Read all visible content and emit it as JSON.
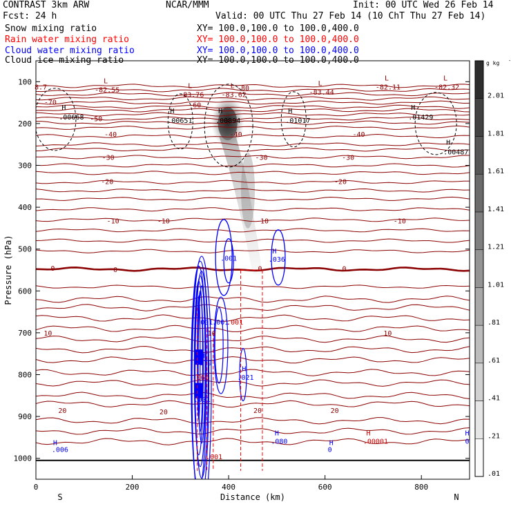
{
  "header": {
    "left1": "CONTRAST  3km ARW",
    "center1": "NCAR/MMM",
    "right1": "Init: 00 UTC Wed 26 Feb 14",
    "left2": "Fcst:   24 h",
    "right2": "Valid: 00 UTC Thu 27 Feb 14 (10 ChT Thu 27 Feb 14)"
  },
  "fields": [
    {
      "name": "Snow mixing ratio",
      "xy": "XY= 100.0,100.0 to 100.0,400.0",
      "color": "#000000"
    },
    {
      "name": "Rain water mixing ratio",
      "xy": "XY= 100.0,100.0 to 100.0,400.0",
      "color": "#ff0000"
    },
    {
      "name": "Cloud water mixing ratio",
      "xy": "XY= 100.0,100.0 to 100.0,400.0",
      "color": "#0000ff"
    },
    {
      "name": "Cloud ice mixing ratio",
      "xy": "XY= 100.0,100.0 to 100.0,400.0",
      "color": "#000000"
    }
  ],
  "chart_data": {
    "type": "contour",
    "xlabel": "Distance (km)",
    "ylabel": "Pressure (hPa)",
    "xlim": [
      0,
      900
    ],
    "ylim": [
      1050,
      50
    ],
    "x_ticks": [
      0,
      200,
      400,
      600,
      800
    ],
    "y_ticks": [
      100,
      200,
      300,
      400,
      500,
      600,
      700,
      800,
      900,
      1000
    ],
    "end_labels": {
      "left": "S",
      "right": "N"
    },
    "colorbar": {
      "unit": "g kg",
      "unit_exp": "-1",
      "labels": [
        ".01",
        ".21",
        ".41",
        ".61",
        ".81",
        "1.01",
        "1.21",
        "1.41",
        "1.61",
        "1.81",
        "2.01"
      ],
      "min": 0.01,
      "max": 2.21
    },
    "temperature_contours": {
      "color": "#8b0000",
      "levels": [
        {
          "p": 130,
          "label": "-80"
        },
        {
          "p": 150,
          "label": "-70"
        },
        {
          "p": 168,
          "label": "-60"
        },
        {
          "p": 188,
          "label": "-50"
        },
        {
          "p": 230,
          "label": "-40"
        },
        {
          "p": 280,
          "label": "-30"
        },
        {
          "p": 340,
          "label": "-20"
        },
        {
          "p": 430,
          "label": "-10"
        },
        {
          "p": 548,
          "label": "0"
        },
        {
          "p": 665,
          "label": "10"
        },
        {
          "p": 795,
          "label": "20"
        }
      ],
      "labels": [
        {
          "text": "-70",
          "x": 30,
          "p": 148
        },
        {
          "text": "-50",
          "x": 125,
          "p": 188
        },
        {
          "text": "-40",
          "x": 155,
          "p": 225
        },
        {
          "text": "-30",
          "x": 150,
          "p": 280
        },
        {
          "text": "-20",
          "x": 148,
          "p": 338
        },
        {
          "text": "-10",
          "x": 160,
          "p": 432
        },
        {
          "text": "-10",
          "x": 265,
          "p": 432
        },
        {
          "text": "0",
          "x": 35,
          "p": 545
        },
        {
          "text": "0",
          "x": 165,
          "p": 548
        },
        {
          "text": "0",
          "x": 465,
          "p": 546
        },
        {
          "text": "10",
          "x": 25,
          "p": 700
        },
        {
          "text": "10",
          "x": 730,
          "p": 700
        },
        {
          "text": "20",
          "x": 55,
          "p": 885
        },
        {
          "text": "20",
          "x": 265,
          "p": 888
        },
        {
          "text": "20",
          "x": 620,
          "p": 885
        },
        {
          "text": "-40",
          "x": 415,
          "p": 225
        },
        {
          "text": "-40",
          "x": 670,
          "p": 225
        },
        {
          "text": "-30",
          "x": 468,
          "p": 280
        },
        {
          "text": "-30",
          "x": 648,
          "p": 280
        },
        {
          "text": "-20",
          "x": 632,
          "p": 338
        },
        {
          "text": "-10",
          "x": 755,
          "p": 432
        },
        {
          "text": "-10",
          "x": 470,
          "p": 432
        },
        {
          "text": "0",
          "x": 640,
          "p": 546
        },
        {
          "text": "10",
          "x": 365,
          "p": 700
        },
        {
          "text": "20",
          "x": 460,
          "p": 885
        },
        {
          "text": "-60",
          "x": 330,
          "p": 155
        },
        {
          "text": "-80",
          "x": 430,
          "p": 114
        },
        {
          "text": "8.7",
          "x": 10,
          "p": 112
        }
      ],
      "extrema": [
        {
          "type": "L",
          "value": "-82.55",
          "x": 145,
          "p": 110
        },
        {
          "type": "L",
          "value": "-83.76",
          "x": 320,
          "p": 122
        },
        {
          "type": "L",
          "value": "-83.62",
          "x": 408,
          "p": 122
        },
        {
          "type": "L",
          "value": "-83.44",
          "x": 590,
          "p": 116
        },
        {
          "type": "L",
          "value": "-82.11",
          "x": 728,
          "p": 104
        },
        {
          "type": "L",
          "value": "-82.32",
          "x": 850,
          "p": 104
        }
      ]
    },
    "snow_max_H": [
      {
        "value": ".00668",
        "x": 65,
        "p": 187
      },
      {
        "value": ".00651",
        "x": 290,
        "p": 195
      },
      {
        "value": ".00894",
        "x": 390,
        "p": 195
      },
      {
        "value": ".01017",
        "x": 535,
        "p": 195
      },
      {
        "value": ".01429",
        "x": 790,
        "p": 187
      },
      {
        "value": ".00487",
        "x": 863,
        "p": 270
      }
    ],
    "cloud_water_labels": [
      {
        "text": ".001",
        "x": 400,
        "p": 528
      },
      {
        "text": "H",
        "x": 495,
        "p": 510
      },
      {
        "text": ".036",
        "x": 500,
        "p": 530
      },
      {
        "text": ".001",
        "x": 350,
        "p": 680
      },
      {
        "text": ".001",
        "x": 383,
        "p": 680
      },
      {
        "text": "H",
        "x": 346,
        "p": 760
      },
      {
        "text": ".079",
        "x": 348,
        "p": 778
      },
      {
        "text": "H",
        "x": 432,
        "p": 792
      },
      {
        "text": ".021",
        "x": 435,
        "p": 812
      },
      {
        "text": ".001",
        "x": 345,
        "p": 865
      },
      {
        "text": "H",
        "x": 40,
        "p": 968
      },
      {
        "text": ".006",
        "x": 50,
        "p": 985
      },
      {
        "text": "H",
        "x": 500,
        "p": 945
      },
      {
        "text": ".080",
        "x": 505,
        "p": 965
      },
      {
        "text": "H",
        "x": 613,
        "p": 968
      },
      {
        "text": "0",
        "x": 610,
        "p": 985
      },
      {
        "text": "H",
        "x": 895,
        "p": 945
      },
      {
        "text": "0",
        "x": 895,
        "p": 965
      }
    ],
    "rain_labels": [
      {
        "text": ".001",
        "x": 413,
        "p": 680
      },
      {
        "text": ".066",
        "x": 342,
        "p": 812
      },
      {
        "text": "H",
        "x": 690,
        "p": 945
      },
      {
        "text": ".00001",
        "x": 705,
        "p": 965
      },
      {
        "text": ".001",
        "x": 370,
        "p": 1002
      }
    ],
    "snow_max_value_gkg": 2.1
  }
}
